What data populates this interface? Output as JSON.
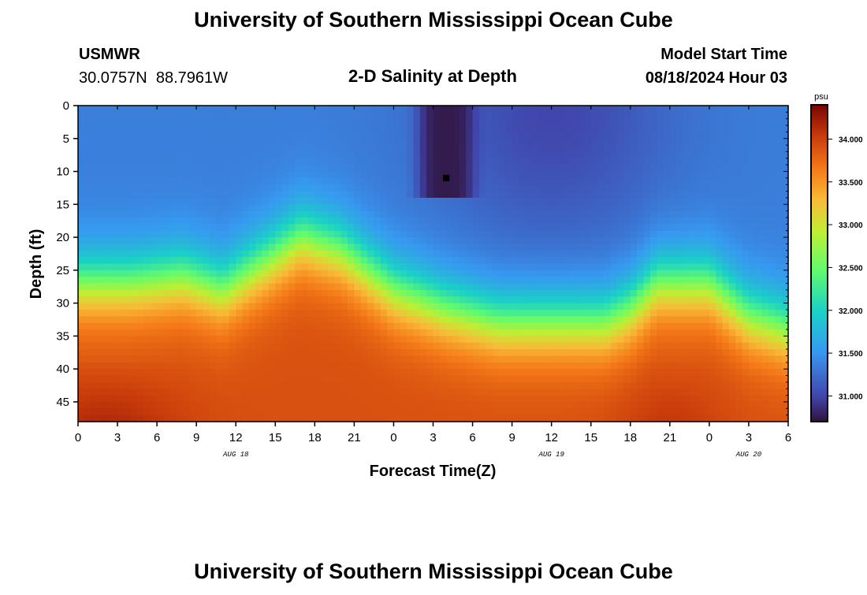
{
  "header": {
    "title": "University of Southern Mississippi Ocean Cube",
    "station_id": "USMWR",
    "station_coords": "30.0757N  88.7961W",
    "subtitle": "2-D Salinity at Depth",
    "model_start_label": "Model Start Time",
    "model_start_value": "08/18/2024 Hour 03"
  },
  "footer": {
    "title": "University of Southern Mississippi Ocean Cube"
  },
  "chart_data": {
    "type": "heatmap",
    "title": "2-D Salinity at Depth",
    "xlabel": "Forecast Time(Z)",
    "ylabel": "Depth (ft)",
    "x_range_hours": [
      0,
      54
    ],
    "x_tick_labels": [
      "0",
      "3",
      "6",
      "9",
      "12",
      "15",
      "18",
      "21",
      "0",
      "3",
      "6",
      "9",
      "12",
      "15",
      "18",
      "21",
      "0",
      "3",
      "6"
    ],
    "x_date_labels": [
      {
        "label": "AUG 18",
        "at_hour": 12
      },
      {
        "label": "AUG 19",
        "at_hour": 36
      },
      {
        "label": "AUG 20",
        "at_hour": 51
      }
    ],
    "y_range_ft": [
      0,
      48
    ],
    "y_tick_labels": [
      "0",
      "5",
      "10",
      "15",
      "20",
      "25",
      "30",
      "35",
      "40",
      "45"
    ],
    "colorbar": {
      "unit": "psu",
      "range": [
        30.7,
        34.4
      ],
      "tick_labels": [
        "34.000",
        "33.500",
        "33.000",
        "32.500",
        "32.000",
        "31.500",
        "31.000"
      ],
      "tick_values": [
        34.0,
        33.5,
        33.0,
        32.5,
        32.0,
        31.5,
        31.0
      ]
    },
    "surface_salinity_psu": 31.35,
    "bottom_salinity_psu": 33.9,
    "halocline_depth_ft": [
      {
        "hour": 0,
        "depth": 27
      },
      {
        "hour": 4,
        "depth": 27
      },
      {
        "hour": 8,
        "depth": 26
      },
      {
        "hour": 11,
        "depth": 28
      },
      {
        "hour": 14,
        "depth": 24
      },
      {
        "hour": 17,
        "depth": 20
      },
      {
        "hour": 20,
        "depth": 22
      },
      {
        "hour": 24,
        "depth": 28
      },
      {
        "hour": 28,
        "depth": 31
      },
      {
        "hour": 32,
        "depth": 33
      },
      {
        "hour": 36,
        "depth": 33
      },
      {
        "hour": 40,
        "depth": 33
      },
      {
        "hour": 42,
        "depth": 31
      },
      {
        "hour": 44,
        "depth": 27
      },
      {
        "hour": 48,
        "depth": 27
      },
      {
        "hour": 51,
        "depth": 32
      },
      {
        "hour": 54,
        "depth": 34
      }
    ],
    "fresh_anomaly": {
      "hour_range": [
        26,
        30
      ],
      "depth_range": [
        0,
        14
      ],
      "min_salinity_psu": 30.75
    },
    "marker": {
      "hour": 28,
      "depth": 11
    }
  }
}
